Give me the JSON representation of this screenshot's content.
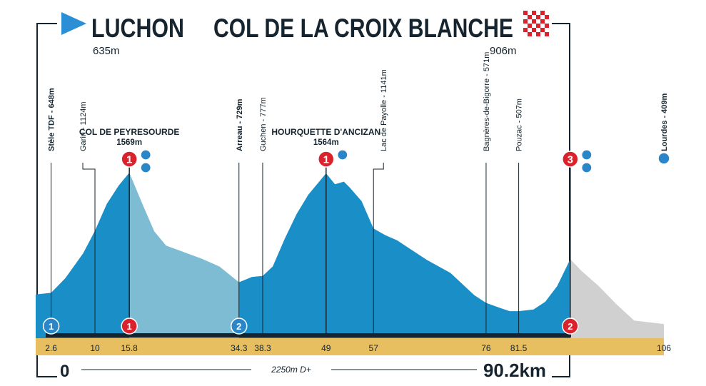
{
  "start": {
    "name": "LUCHON",
    "altitude": "635m",
    "km_label": "0"
  },
  "finish": {
    "name": "COL DE LA CROIX BLANCHE",
    "altitude": "906m",
    "km_label": "90.2km"
  },
  "total_climb": "2250m D+",
  "colors": {
    "race_fill": "#1a8ec6",
    "descent_fill": "#7dbcd2",
    "after_finish_fill": "#d0d0d0",
    "km_band": "#e7bf60",
    "dark": "#15242e",
    "sprint_blue": "#2b86c8",
    "kom_red": "#d9222c",
    "start_arrow": "#2b8fd6"
  },
  "chart_data": {
    "type": "area",
    "xlabel": "",
    "ylabel": "",
    "xlim": [
      0,
      106
    ],
    "ylim": [
      0,
      1700
    ],
    "profile": [
      [
        0,
        635
      ],
      [
        2.6,
        648
      ],
      [
        5,
        760
      ],
      [
        8,
        950
      ],
      [
        10,
        1124
      ],
      [
        12,
        1330
      ],
      [
        14,
        1470
      ],
      [
        15.8,
        1569
      ],
      [
        18,
        1330
      ],
      [
        20,
        1120
      ],
      [
        22,
        1010
      ],
      [
        25,
        960
      ],
      [
        28,
        910
      ],
      [
        31,
        850
      ],
      [
        34.3,
        729
      ],
      [
        36.5,
        770
      ],
      [
        38.3,
        777
      ],
      [
        40,
        850
      ],
      [
        42,
        1060
      ],
      [
        44,
        1250
      ],
      [
        46,
        1400
      ],
      [
        49,
        1564
      ],
      [
        50.5,
        1480
      ],
      [
        52,
        1500
      ],
      [
        53,
        1455
      ],
      [
        55,
        1350
      ],
      [
        57,
        1141
      ],
      [
        59,
        1090
      ],
      [
        61,
        1050
      ],
      [
        63,
        990
      ],
      [
        66,
        900
      ],
      [
        70,
        800
      ],
      [
        74,
        630
      ],
      [
        76,
        571
      ],
      [
        78.5,
        530
      ],
      [
        80,
        507
      ],
      [
        81.5,
        507
      ],
      [
        84,
        520
      ],
      [
        86,
        580
      ],
      [
        88,
        700
      ],
      [
        90.2,
        906
      ],
      [
        92,
        820
      ],
      [
        95,
        700
      ],
      [
        98,
        560
      ],
      [
        101,
        435
      ],
      [
        106,
        409
      ]
    ],
    "passes": [
      {
        "name": "COL DE PEYRESOURDE",
        "altitude": "1569m",
        "km": 15.8,
        "category": "1"
      },
      {
        "name": "HOURQUETTE D'ANCIZAN",
        "altitude": "1564m",
        "km": 49,
        "category": "1"
      },
      {
        "name": "",
        "altitude": "",
        "km": 90.2,
        "category": "3"
      }
    ],
    "places": [
      {
        "km": 2.6,
        "label": "Stèle TDF - 648m"
      },
      {
        "km": 10,
        "label": "Garin - 1124m"
      },
      {
        "km": 34.3,
        "label": "Arreau - 729m"
      },
      {
        "km": 38.3,
        "label": "Guchen - 777m"
      },
      {
        "km": 57,
        "label": "Lac de Payolle - 1141m"
      },
      {
        "km": 76,
        "label": "Bagnères-de-Bigorre - 571m"
      },
      {
        "km": 81.5,
        "label": "Pouzac - 507m"
      },
      {
        "km": 106,
        "label": "Lourdes - 409m"
      }
    ],
    "km_ticks": [
      "2.6",
      "10",
      "15.8",
      "34.3",
      "38.3",
      "49",
      "57",
      "76",
      "81.5",
      "106"
    ],
    "km_tick_values": [
      2.6,
      10,
      15.8,
      34.3,
      38.3,
      49,
      57,
      76,
      81.5,
      106
    ],
    "bottom_markers": [
      {
        "km": 2.6,
        "number": "1",
        "kind": "sprint"
      },
      {
        "km": 15.8,
        "number": "1",
        "kind": "kom"
      },
      {
        "km": 34.3,
        "number": "2",
        "kind": "sprint"
      },
      {
        "km": 90.2,
        "number": "2",
        "kind": "kom"
      }
    ]
  }
}
